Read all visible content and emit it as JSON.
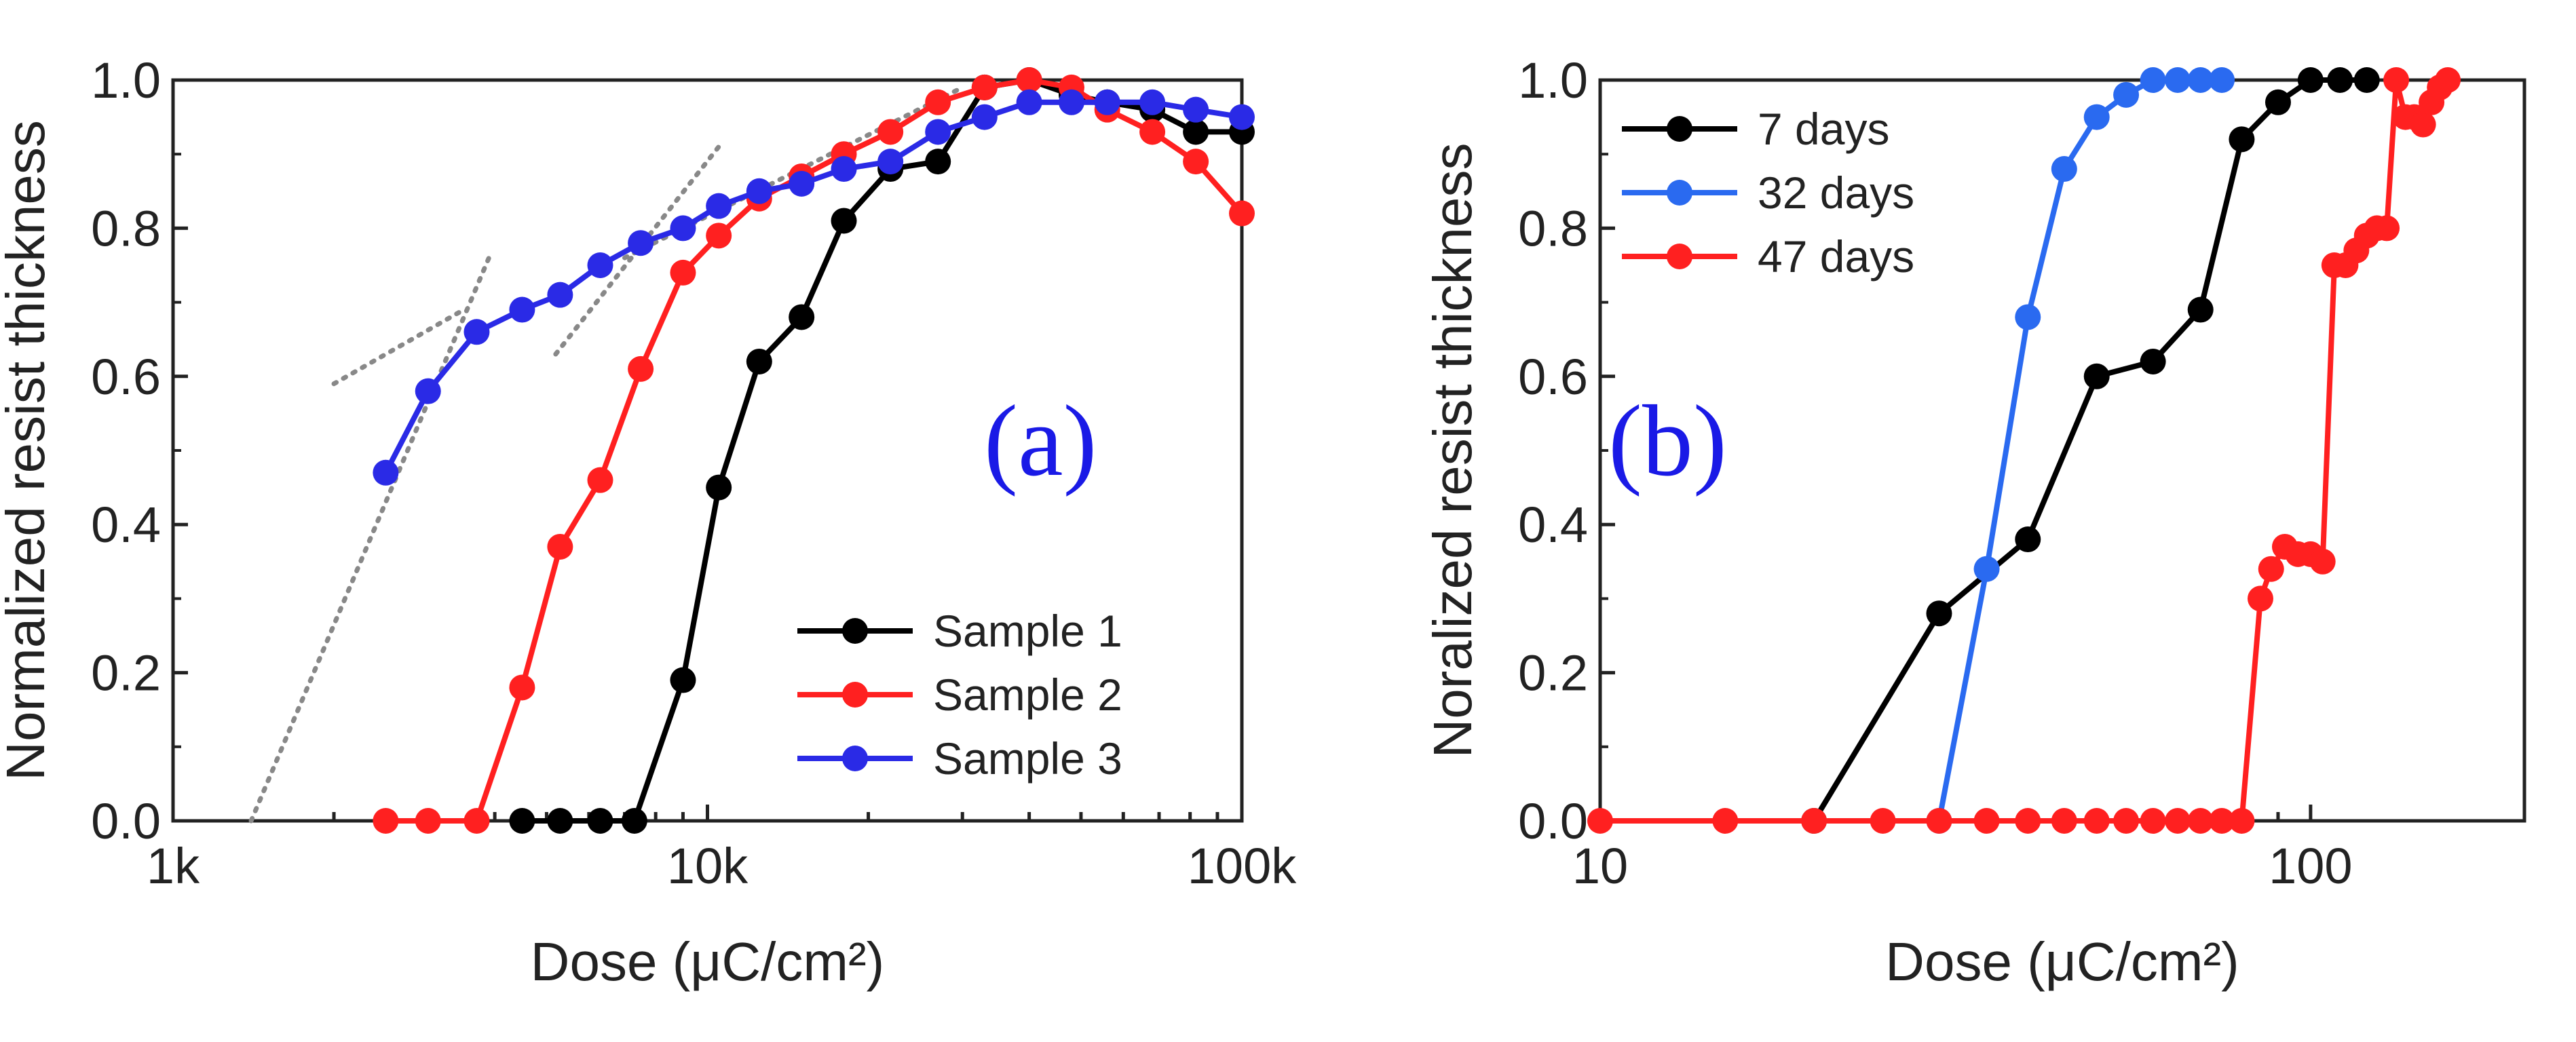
{
  "chart_data": [
    {
      "panel": "a",
      "type": "line",
      "panel_label": "(a)",
      "panel_label_color": "#1a1ae6",
      "xscale": "log",
      "xlim": [
        1000,
        100000
      ],
      "ylim": [
        0,
        1.0
      ],
      "xlabel": "Dose (μC/cm²)",
      "ylabel": "Normalized resist thickness",
      "x_ticks": [
        {
          "value": 1000,
          "label": "1k"
        },
        {
          "value": 10000,
          "label": "10k"
        },
        {
          "value": 100000,
          "label": "100k"
        }
      ],
      "y_ticks": [
        {
          "value": 0.0,
          "label": "0.0"
        },
        {
          "value": 0.2,
          "label": "0.2"
        },
        {
          "value": 0.4,
          "label": "0.4"
        },
        {
          "value": 0.6,
          "label": "0.6"
        },
        {
          "value": 0.8,
          "label": "0.8"
        },
        {
          "value": 1.0,
          "label": "1.0"
        }
      ],
      "legend_position": "bottom-right",
      "series": [
        {
          "name": "Sample 1",
          "color": "#000000",
          "x": [
            4500,
            5300,
            6300,
            7300,
            9000,
            10500,
            12500,
            15000,
            18000,
            22000,
            27000,
            33000,
            40000,
            48000,
            56000,
            68000,
            82000,
            100000
          ],
          "y": [
            0,
            0,
            0,
            0,
            0.19,
            0.45,
            0.62,
            0.68,
            0.81,
            0.88,
            0.89,
            0.99,
            1.0,
            0.98,
            0.97,
            0.96,
            0.93,
            0.93
          ]
        },
        {
          "name": "Sample 2",
          "color": "#ff2020",
          "x": [
            2500,
            3000,
            3700,
            4500,
            5300,
            6300,
            7500,
            9000,
            10500,
            12500,
            15000,
            18000,
            22000,
            27000,
            33000,
            40000,
            48000,
            56000,
            68000,
            82000,
            100000
          ],
          "y": [
            0,
            0,
            0,
            0.18,
            0.37,
            0.46,
            0.61,
            0.74,
            0.79,
            0.84,
            0.87,
            0.9,
            0.93,
            0.97,
            0.99,
            1.0,
            0.99,
            0.96,
            0.93,
            0.89,
            0.82
          ]
        },
        {
          "name": "Sample 3",
          "color": "#2a2ae6",
          "x": [
            2500,
            3000,
            3700,
            4500,
            5300,
            6300,
            7500,
            9000,
            10500,
            12500,
            15000,
            18000,
            22000,
            27000,
            33000,
            40000,
            48000,
            56000,
            68000,
            82000,
            100000
          ],
          "y": [
            0.47,
            0.58,
            0.66,
            0.69,
            0.71,
            0.75,
            0.78,
            0.8,
            0.83,
            0.85,
            0.86,
            0.88,
            0.89,
            0.93,
            0.95,
            0.97,
            0.97,
            0.97,
            0.97,
            0.96,
            0.95
          ]
        }
      ],
      "fit_lines": [
        {
          "x": [
            1400,
            3900
          ],
          "y": [
            0,
            0.76
          ]
        },
        {
          "x": [
            2000,
            3500
          ],
          "y": [
            0.59,
            0.69
          ]
        },
        {
          "x": [
            5200,
            10500
          ],
          "y": [
            0.63,
            0.91
          ]
        },
        {
          "x": [
            7000,
            30000
          ],
          "y": [
            0.76,
            0.99
          ]
        }
      ]
    },
    {
      "panel": "b",
      "type": "line",
      "panel_label": "(b)",
      "panel_label_color": "#1a1ae6",
      "xscale": "log",
      "xlim": [
        10,
        200
      ],
      "ylim": [
        0,
        1.0
      ],
      "xlabel": "Dose (μC/cm²)",
      "ylabel": "Noralized resist thickness",
      "x_ticks": [
        {
          "value": 10,
          "label": "10"
        },
        {
          "value": 100,
          "label": "100"
        }
      ],
      "y_ticks": [
        {
          "value": 0.0,
          "label": "0.0"
        },
        {
          "value": 0.2,
          "label": "0.2"
        },
        {
          "value": 0.4,
          "label": "0.4"
        },
        {
          "value": 0.6,
          "label": "0.6"
        },
        {
          "value": 0.8,
          "label": "0.8"
        },
        {
          "value": 1.0,
          "label": "1.0"
        }
      ],
      "legend_position": "top-left",
      "series": [
        {
          "name": "7 days",
          "color": "#000000",
          "x": [
            20,
            30,
            40,
            50,
            60,
            70,
            80,
            90,
            100,
            110,
            120
          ],
          "y": [
            0,
            0.28,
            0.38,
            0.6,
            0.62,
            0.69,
            0.92,
            0.97,
            1.0,
            1.0,
            1.0
          ]
        },
        {
          "name": "32 days",
          "color": "#2a6af0",
          "x": [
            30,
            35,
            40,
            45,
            50,
            55,
            60,
            65,
            70,
            75
          ],
          "y": [
            0,
            0.34,
            0.68,
            0.88,
            0.95,
            0.98,
            1.0,
            1.0,
            1.0,
            1.0
          ]
        },
        {
          "name": "47 days",
          "color": "#ff2020",
          "x": [
            10,
            15,
            20,
            25,
            30,
            35,
            40,
            45,
            50,
            55,
            60,
            65,
            70,
            75,
            80,
            85,
            88,
            92,
            96,
            100,
            104,
            108,
            112,
            116,
            120,
            124,
            128,
            132,
            136,
            140,
            144,
            148,
            152,
            156
          ],
          "y": [
            0,
            0,
            0,
            0,
            0,
            0,
            0,
            0,
            0,
            0,
            0,
            0,
            0,
            0,
            0,
            0.3,
            0.34,
            0.37,
            0.36,
            0.36,
            0.35,
            0.75,
            0.75,
            0.77,
            0.79,
            0.8,
            0.8,
            1.0,
            0.95,
            0.95,
            0.94,
            0.97,
            0.99,
            1.0
          ]
        }
      ]
    }
  ]
}
